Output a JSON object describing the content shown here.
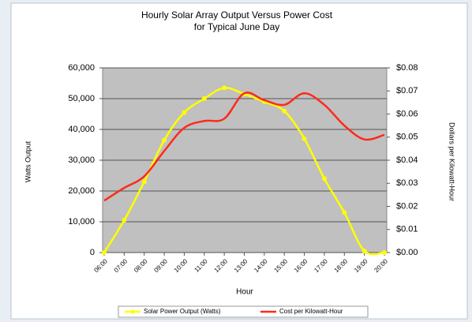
{
  "chart_data": {
    "type": "line",
    "title": "Hourly Solar Array Output Versus Power Cost",
    "subtitle": "for Typical June Day",
    "x_label": "Hour",
    "y_label": "Watts Output",
    "y2_label": "Dollars per Kilowatt-Hour",
    "categories": [
      "06:00",
      "07:00",
      "08:00",
      "09:00",
      "10:00",
      "11:00",
      "12:00",
      "13:00",
      "14:00",
      "15:00",
      "16:00",
      "17:00",
      "18:00",
      "19:00",
      "20:00"
    ],
    "series": [
      {
        "name": "Solar Power Output (Watts)",
        "color": "#ffff00",
        "axis": "y",
        "markers": true,
        "values": [
          0,
          10500,
          23000,
          36500,
          45500,
          50000,
          53500,
          51500,
          49000,
          46000,
          37000,
          24000,
          13000,
          500,
          0
        ]
      },
      {
        "name": "Cost per Kilowatt-Hour",
        "color": "#ff2a1a",
        "axis": "y2",
        "markers": false,
        "values": [
          0.0225,
          0.028,
          0.033,
          0.044,
          0.054,
          0.057,
          0.058,
          0.069,
          0.066,
          0.064,
          0.069,
          0.064,
          0.055,
          0.049,
          0.051
        ]
      }
    ],
    "ylim": [
      0,
      60000
    ],
    "yticks": [
      0,
      {
        "value": 10000,
        "label": "10,000"
      },
      {
        "value": 20000,
        "label": "20,000"
      },
      {
        "value": 30000,
        "label": "30,000"
      },
      {
        "value": 40000,
        "label": "40,000"
      },
      {
        "value": 50000,
        "label": "50,000"
      },
      {
        "value": 60000,
        "label": "60,000"
      }
    ],
    "y2lim": [
      0,
      0.08
    ],
    "y2ticks": [
      {
        "value": 0,
        "label": "$0.00"
      },
      {
        "value": 0.01,
        "label": "$0.01"
      },
      {
        "value": 0.02,
        "label": "$0.02"
      },
      {
        "value": 0.03,
        "label": "$0.03"
      },
      {
        "value": 0.04,
        "label": "$0.04"
      },
      {
        "value": 0.05,
        "label": "$0.05"
      },
      {
        "value": 0.06,
        "label": "$0.06"
      },
      {
        "value": 0.07,
        "label": "$0.07"
      },
      {
        "value": 0.08,
        "label": "$0.08"
      }
    ],
    "grid": true,
    "legend": "bottom"
  }
}
